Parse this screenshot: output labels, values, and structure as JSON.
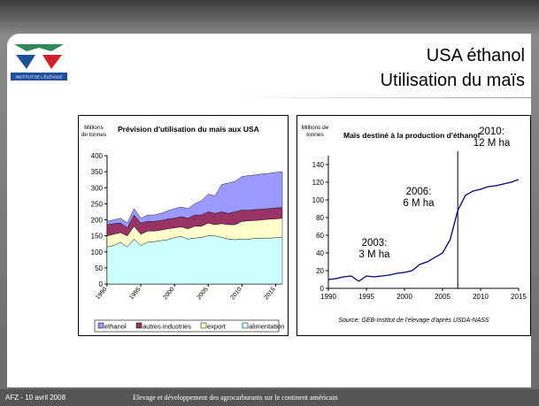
{
  "slide": {
    "title": "USA éthanol",
    "subtitle": "Utilisation du maïs",
    "logo_text": "INSTITUT DE L'ÉLEVAGE",
    "footer_left": "AFZ - 10 avril 2008",
    "footer_center": "Elevage et développement des agrocarburants sur le continent américain"
  },
  "chart_data": [
    {
      "type": "stacked_area",
      "title": "Prévision d'utilisation du maïs aux USA",
      "ylabel": "Millions de tonnes",
      "x": [
        1990,
        1991,
        1992,
        1993,
        1994,
        1995,
        1996,
        1997,
        1998,
        1999,
        2000,
        2001,
        2002,
        2003,
        2004,
        2005,
        2006,
        2007,
        2008,
        2009,
        2010,
        2011,
        2012,
        2013,
        2014,
        2015,
        2016
      ],
      "xlim": [
        1990,
        2016
      ],
      "xticks": [
        1990,
        1995,
        2000,
        2005,
        2010,
        2015
      ],
      "ylim": [
        0,
        400
      ],
      "yticks": [
        0,
        50,
        100,
        150,
        200,
        250,
        300,
        350,
        400
      ],
      "series": [
        {
          "name": "alimentation",
          "color": "#ccffff",
          "values": [
            115,
            120,
            130,
            115,
            140,
            120,
            130,
            132,
            135,
            138,
            145,
            148,
            140,
            143,
            145,
            150,
            150,
            145,
            140,
            138,
            140,
            140,
            142,
            143,
            143,
            144,
            145
          ]
        },
        {
          "name": "export",
          "color": "#ffffcc",
          "values": [
            35,
            35,
            30,
            35,
            40,
            35,
            35,
            33,
            33,
            34,
            30,
            30,
            32,
            37,
            35,
            40,
            35,
            43,
            45,
            47,
            55,
            57,
            56,
            57,
            59,
            59,
            60
          ]
        },
        {
          "name": "autres industries",
          "color": "#993366",
          "values": [
            35,
            33,
            30,
            25,
            35,
            35,
            30,
            30,
            30,
            30,
            30,
            32,
            33,
            35,
            35,
            35,
            35,
            37,
            35,
            40,
            35,
            33,
            34,
            33,
            33,
            34,
            33
          ]
        },
        {
          "name": "ethanol",
          "color": "#9999ff",
          "values": [
            10,
            12,
            15,
            15,
            20,
            15,
            20,
            20,
            22,
            26,
            30,
            30,
            30,
            35,
            45,
            55,
            55,
            85,
            95,
            95,
            105,
            108,
            108,
            110,
            110,
            111,
            112
          ]
        }
      ],
      "legend_order": [
        3,
        2,
        1,
        0
      ]
    },
    {
      "type": "line",
      "title": "Maïs destiné à la production d'éthanol",
      "ylabel": "Millions de tonnes",
      "x": [
        1990,
        1991,
        1992,
        1993,
        1994,
        1995,
        1996,
        1997,
        1998,
        1999,
        2000,
        2001,
        2002,
        2003,
        2004,
        2005,
        2006,
        2007,
        2008,
        2009,
        2010,
        2011,
        2012,
        2013,
        2014,
        2015
      ],
      "xlim": [
        1990,
        2015
      ],
      "xticks": [
        1990,
        1995,
        2000,
        2005,
        2010,
        2015
      ],
      "ylim": [
        0,
        150
      ],
      "yticks": [
        0,
        20,
        40,
        60,
        80,
        100,
        120,
        140
      ],
      "color": "#000080",
      "values": [
        10,
        11,
        13,
        14,
        8,
        14,
        13,
        14,
        15,
        17,
        18,
        20,
        27,
        30,
        35,
        40,
        55,
        88,
        105,
        110,
        112,
        115,
        116,
        118,
        120,
        123
      ],
      "vline": 2007,
      "annotations": [
        "2003:\n3 M ha",
        "2006:\n6 M ha",
        "2010:\n12 M ha"
      ],
      "source": "Source: GEB-Institut de l'élevage d'après USDA-NASS"
    }
  ]
}
